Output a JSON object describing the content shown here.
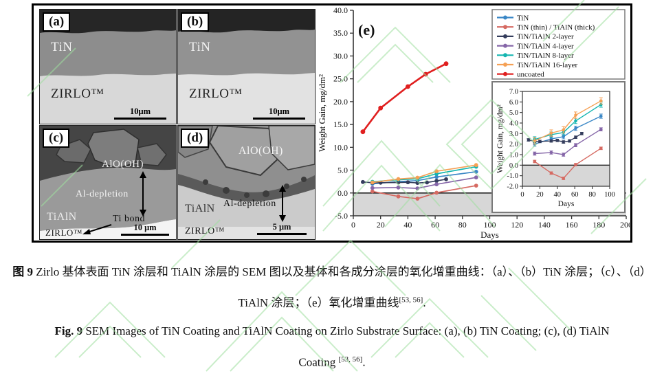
{
  "watermark_color": "#9fdf9f",
  "figure": {
    "panels": {
      "a": {
        "label": "(a)",
        "coating": "TiN",
        "substrate": "ZIRLO™",
        "scale": "10μm"
      },
      "b": {
        "label": "(b)",
        "coating": "TiN",
        "substrate": "ZIRLO™",
        "scale": "10μm"
      },
      "c": {
        "label": "(c)",
        "oxide": "AlO(OH)",
        "depletion": "Al-depletion",
        "coating": "TiAlN",
        "bond": "Ti bond",
        "substrate": "ZIRLO™",
        "scale": "10 μm"
      },
      "d": {
        "label": "(d)",
        "oxide": "AlO(OH)",
        "depletion": "Al-depletion",
        "coating": "TiAlN",
        "substrate": "ZIRLO™",
        "scale": "5 μm"
      }
    }
  },
  "chart_data": {
    "type": "line",
    "panel_label": "(e)",
    "xlabel": "Days",
    "ylabel": "Weight Gain, mg/dm²",
    "xlim": [
      0,
      200
    ],
    "ylim": [
      -5,
      40
    ],
    "xticks": [
      0,
      20,
      40,
      60,
      80,
      100,
      120,
      140,
      160,
      180,
      200
    ],
    "yticks": [
      -5,
      0,
      5,
      10,
      15,
      20,
      25,
      30,
      35,
      40
    ],
    "grid": false,
    "legend_position": "top-right",
    "shaded_region": {
      "from": -5,
      "to": 0,
      "color": "#d7d7d7"
    },
    "series": [
      {
        "name": "TiN",
        "color": "#3a87c6",
        "in_inset": true,
        "err": 0.2,
        "points": [
          [
            14,
            2.0
          ],
          [
            33,
            2.5
          ],
          [
            47,
            2.7
          ],
          [
            61,
            3.5
          ],
          [
            90,
            4.65
          ]
        ]
      },
      {
        "name": "TiN (thin) / TiAlN (thick)",
        "color": "#d66a62",
        "in_inset": true,
        "err": 0.12,
        "points": [
          [
            14,
            0.35
          ],
          [
            33,
            -0.75
          ],
          [
            47,
            -1.25
          ],
          [
            61,
            0.05
          ],
          [
            90,
            1.6
          ]
        ]
      },
      {
        "name": "TiN/TiAlN 2-layer",
        "color": "#343d5c",
        "in_inset": true,
        "err": 0.12,
        "points": [
          [
            7,
            2.4
          ],
          [
            14,
            2.25
          ],
          [
            20,
            2.25
          ],
          [
            33,
            2.3
          ],
          [
            40,
            2.35
          ],
          [
            47,
            2.2
          ],
          [
            54,
            2.3
          ],
          [
            61,
            2.65
          ],
          [
            68,
            3.0
          ]
        ]
      },
      {
        "name": "TiN/TiAlN 4-layer",
        "color": "#8566a8",
        "in_inset": true,
        "err": 0.15,
        "points": [
          [
            14,
            1.1
          ],
          [
            33,
            1.2
          ],
          [
            47,
            1.0
          ],
          [
            61,
            1.9
          ],
          [
            90,
            3.4
          ]
        ]
      },
      {
        "name": "TiN/TiAlN 8-layer",
        "color": "#14b5b0",
        "in_inset": true,
        "err": 0.25,
        "points": [
          [
            14,
            2.45
          ],
          [
            33,
            2.9
          ],
          [
            47,
            3.1
          ],
          [
            61,
            4.2
          ],
          [
            90,
            5.75
          ]
        ]
      },
      {
        "name": "TiN/TiAlN 16-layer",
        "color": "#f5a054",
        "in_inset": true,
        "err": 0.3,
        "points": [
          [
            14,
            2.3
          ],
          [
            33,
            3.05
          ],
          [
            47,
            3.35
          ],
          [
            61,
            4.75
          ],
          [
            90,
            6.1
          ]
        ]
      },
      {
        "name": "uncoated",
        "color": "#e01f1f",
        "in_inset": false,
        "points": [
          [
            7,
            13.4
          ],
          [
            20,
            18.6
          ],
          [
            40,
            23.3
          ],
          [
            53,
            26.0
          ],
          [
            68,
            28.3
          ]
        ]
      }
    ],
    "inset": {
      "xlabel": "Days",
      "ylabel": "Weight Gain, mg/dm²",
      "xlim": [
        0,
        100
      ],
      "ylim": [
        -2,
        7
      ],
      "xticks": [
        0,
        20,
        40,
        60,
        80,
        100
      ],
      "yticks": [
        -2,
        -1,
        0,
        1,
        2,
        3,
        4,
        5,
        6,
        7
      ],
      "shaded_region": {
        "from": -2,
        "to": 0,
        "color": "#d7d7d7"
      }
    }
  },
  "caption": {
    "zh_prefix": "图 9",
    "zh_line1": " Zirlo 基体表面 TiN 涂层和 TiAlN 涂层的 SEM 图以及基体和各成分涂层的氧化增重曲线：（a）、（b）TiN 涂层；（c）、（d）",
    "zh_line2": "TiAlN 涂层；（e）氧化增重曲线",
    "zh_sup": "[53, 56]",
    "zh_end": ".",
    "en_prefix": "Fig. 9",
    "en_line1": " SEM Images of TiN Coating and TiAlN Coating on Zirlo Substrate Surface: (a), (b) TiN Coating; (c), (d) TiAlN",
    "en_line2": "Coating ",
    "en_sup": "[53, 56]",
    "en_end": "."
  }
}
